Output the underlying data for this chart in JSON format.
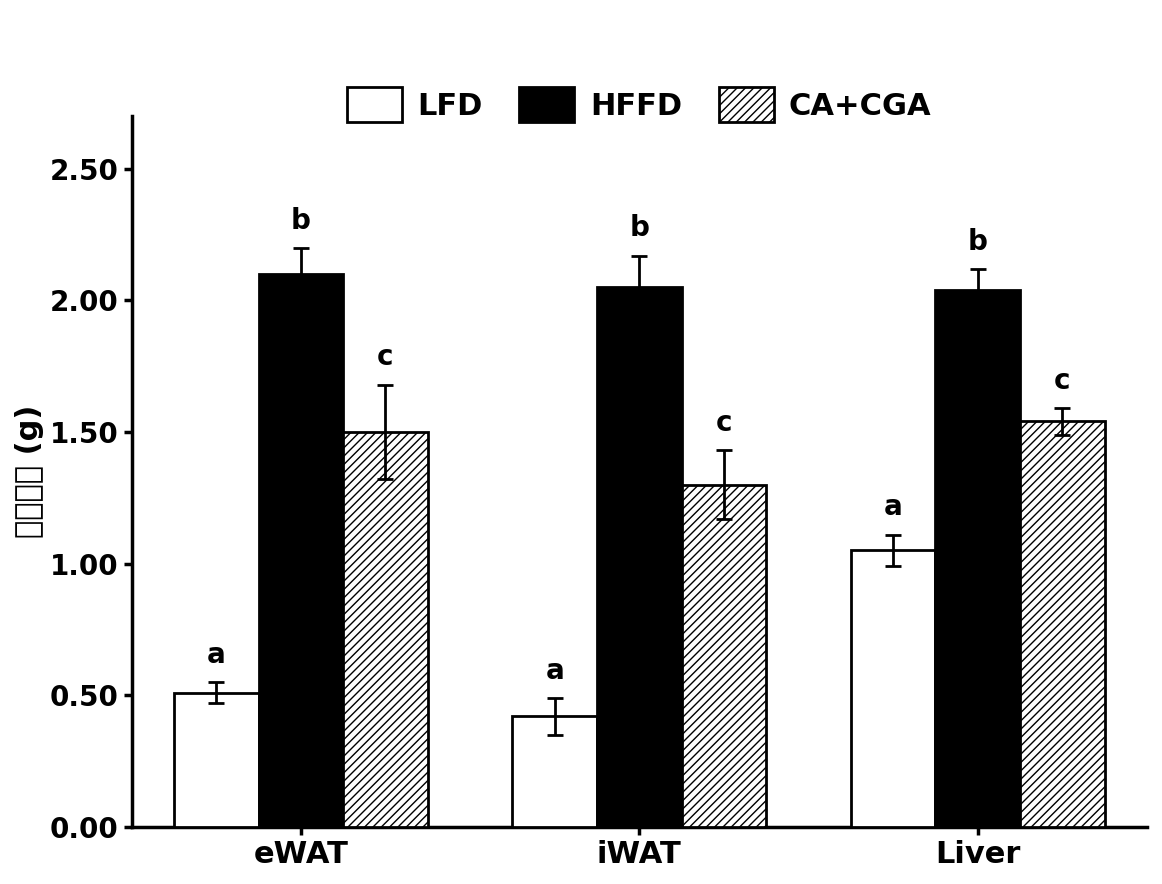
{
  "groups": [
    "eWAT",
    "iWAT",
    "Liver"
  ],
  "series": [
    "LFD",
    "HFFD",
    "CA+CGA"
  ],
  "values_by_group": [
    [
      0.51,
      2.1,
      1.5
    ],
    [
      0.42,
      2.05,
      1.3
    ],
    [
      1.05,
      2.04,
      1.54
    ]
  ],
  "errors_by_group": [
    [
      0.04,
      0.1,
      0.18
    ],
    [
      0.07,
      0.12,
      0.13
    ],
    [
      0.06,
      0.08,
      0.05
    ]
  ],
  "labels_by_group": [
    [
      "a",
      "b",
      "c"
    ],
    [
      "a",
      "b",
      "c"
    ],
    [
      "a",
      "b",
      "c"
    ]
  ],
  "bar_width": 0.25,
  "ylabel": "组织重量 (g)",
  "ylim": [
    0,
    2.7
  ],
  "yticks": [
    0.0,
    0.5,
    1.0,
    1.5,
    2.0,
    2.5
  ],
  "yticklabels": [
    "0.00",
    "0.50",
    "1.00",
    "1.50",
    "2.00",
    "2.50"
  ],
  "colors": [
    "white",
    "black",
    "white"
  ],
  "hatch_patterns": [
    "",
    "",
    "////"
  ],
  "edgecolors": [
    "black",
    "black",
    "black"
  ],
  "legend_labels": [
    "LFD",
    "HFFD",
    "CA+CGA"
  ],
  "label_fontsize": 22,
  "tick_fontsize": 20,
  "legend_fontsize": 22,
  "annot_fontsize": 20,
  "background_color": "#ffffff",
  "figsize": [
    11.62,
    8.84
  ],
  "dpi": 100
}
